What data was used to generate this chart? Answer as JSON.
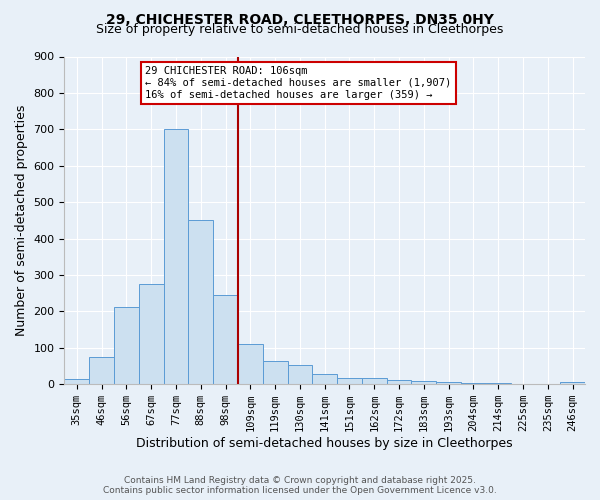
{
  "title1": "29, CHICHESTER ROAD, CLEETHORPES, DN35 0HY",
  "title2": "Size of property relative to semi-detached houses in Cleethorpes",
  "xlabel": "Distribution of semi-detached houses by size in Cleethorpes",
  "ylabel": "Number of semi-detached properties",
  "bar_labels": [
    "35sqm",
    "46sqm",
    "56sqm",
    "67sqm",
    "77sqm",
    "88sqm",
    "98sqm",
    "109sqm",
    "119sqm",
    "130sqm",
    "141sqm",
    "151sqm",
    "162sqm",
    "172sqm",
    "183sqm",
    "193sqm",
    "204sqm",
    "214sqm",
    "225sqm",
    "235sqm",
    "246sqm"
  ],
  "bar_values": [
    13,
    75,
    213,
    275,
    700,
    450,
    246,
    110,
    65,
    52,
    28,
    18,
    17,
    12,
    9,
    5,
    4,
    2,
    1,
    0,
    5
  ],
  "bar_color": "#cce0f0",
  "bar_edge_color": "#5b9bd5",
  "vline_color": "#aa0000",
  "annotation_title": "29 CHICHESTER ROAD: 106sqm",
  "annotation_line1": "← 84% of semi-detached houses are smaller (1,907)",
  "annotation_line2": "16% of semi-detached houses are larger (359) →",
  "annotation_box_color": "#ffffff",
  "annotation_box_edge": "#cc0000",
  "ylim": [
    0,
    900
  ],
  "yticks": [
    0,
    100,
    200,
    300,
    400,
    500,
    600,
    700,
    800,
    900
  ],
  "footnote1": "Contains HM Land Registry data © Crown copyright and database right 2025.",
  "footnote2": "Contains public sector information licensed under the Open Government Licence v3.0.",
  "bg_color": "#e8f0f8",
  "plot_bg_color": "#e8f0f8",
  "grid_color": "#ffffff"
}
